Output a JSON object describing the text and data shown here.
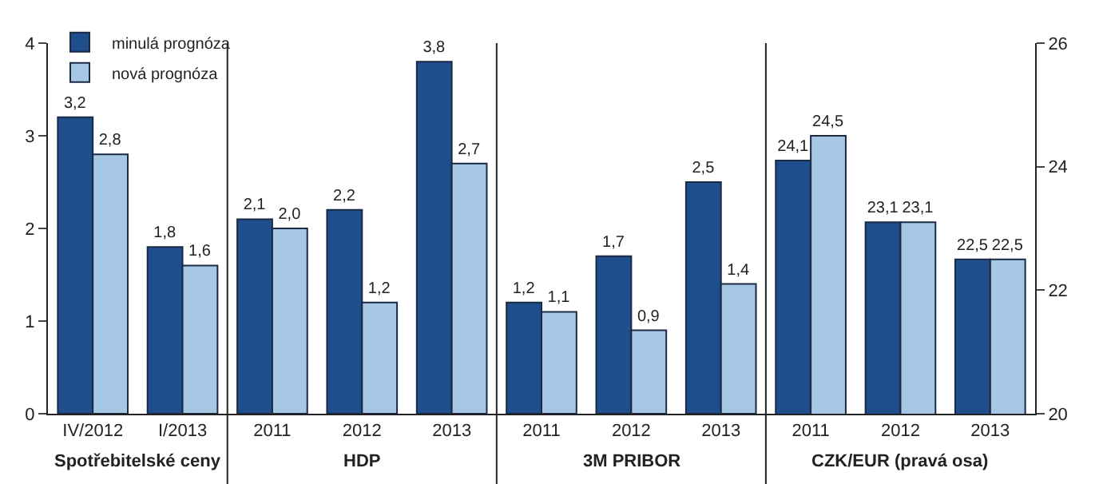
{
  "chart_data": {
    "type": "bar",
    "categories": [
      "IV/2012",
      "I/2013",
      "2011",
      "2012",
      "2013",
      "2011",
      "2012",
      "2013",
      "2011",
      "2012",
      "2013"
    ],
    "series": [
      {
        "name": "minulá prognóza",
        "color": "#1f4e8c",
        "values": [
          3.2,
          1.8,
          2.1,
          2.2,
          3.8,
          1.2,
          1.7,
          2.5,
          null,
          null,
          null
        ],
        "value_labels": [
          "3,2",
          "1,8",
          "2,1",
          "2,2",
          "3,8",
          "1,2",
          "1,7",
          "2,5",
          null,
          null,
          null
        ]
      },
      {
        "name": "nová prognóza",
        "color": "#a6c8e4",
        "values": [
          2.8,
          1.6,
          2.0,
          1.2,
          2.7,
          1.1,
          0.9,
          1.4,
          null,
          null,
          null
        ],
        "value_labels": [
          "2,8",
          "1,6",
          "2,0",
          "1,2",
          "2,7",
          "1,1",
          "0,9",
          "1,4",
          null,
          null,
          null
        ]
      },
      {
        "color": "#1f4e8c",
        "axis": "y2",
        "values": [
          null,
          null,
          null,
          null,
          null,
          null,
          null,
          null,
          24.1,
          23.1,
          22.5
        ],
        "value_labels": [
          null,
          null,
          null,
          null,
          null,
          null,
          null,
          null,
          "24,1",
          "23,1",
          "22,5"
        ]
      },
      {
        "color": "#a6c8e4",
        "axis": "y2",
        "values": [
          null,
          null,
          null,
          null,
          null,
          null,
          null,
          null,
          24.5,
          23.1,
          22.5
        ],
        "value_labels": [
          null,
          null,
          null,
          null,
          null,
          null,
          null,
          null,
          "24,5",
          "23,1",
          "22,5"
        ]
      }
    ],
    "annotations": [
      "Spotřebitelské ceny",
      "HDP",
      "3M PRIBOR",
      "CZK/EUR (pravá osa)"
    ],
    "ylim": [
      0,
      4
    ],
    "yticks": [
      0,
      1,
      2,
      3,
      4
    ],
    "y2lim": [
      20,
      26
    ],
    "y2ticks": [
      20,
      22,
      24,
      26
    ],
    "legend": "top left"
  }
}
